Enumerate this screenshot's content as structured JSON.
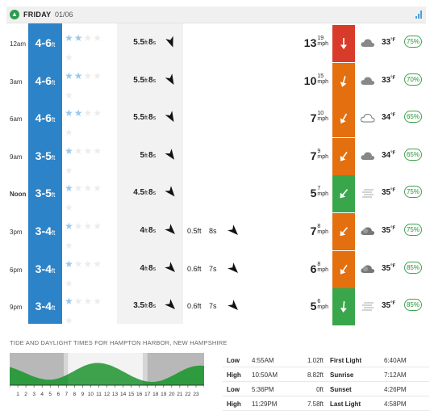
{
  "header": {
    "day": "FRIDAY",
    "date": "01/06"
  },
  "rows": [
    {
      "time": "12am",
      "bold_time": false,
      "surf": "4-6",
      "surf_unit": "ft",
      "stars_on": 2,
      "swell1": {
        "height": "5.5",
        "unit": "ft",
        "period": "8",
        "punit": "s",
        "dir": 160
      },
      "swell2": null,
      "wind": "13",
      "gust": "19",
      "wind_unit": "mph",
      "wind_color": "#d93b2b",
      "wind_dir": 180,
      "weather": "cloudy",
      "temp": "33",
      "temp_unit": "°F",
      "prob": "75%"
    },
    {
      "time": "3am",
      "bold_time": false,
      "surf": "4-6",
      "surf_unit": "ft",
      "stars_on": 2,
      "swell1": {
        "height": "5.5",
        "unit": "ft",
        "period": "8",
        "punit": "s",
        "dir": 150
      },
      "swell2": null,
      "wind": "10",
      "gust": "15",
      "wind_unit": "mph",
      "wind_color": "#e36f0f",
      "wind_dir": 195,
      "weather": "cloudy",
      "temp": "33",
      "temp_unit": "°F",
      "prob": "70%"
    },
    {
      "time": "6am",
      "bold_time": false,
      "surf": "4-6",
      "surf_unit": "ft",
      "stars_on": 2,
      "swell1": {
        "height": "5.5",
        "unit": "ft",
        "period": "8",
        "punit": "s",
        "dir": 150
      },
      "swell2": null,
      "wind": "7",
      "gust": "10",
      "wind_unit": "mph",
      "wind_color": "#e36f0f",
      "wind_dir": 210,
      "weather": "cloudy-outline",
      "temp": "34",
      "temp_unit": "°F",
      "prob": "65%"
    },
    {
      "time": "9am",
      "bold_time": false,
      "surf": "3-5",
      "surf_unit": "ft",
      "stars_on": 1,
      "swell1": {
        "height": "5",
        "unit": "ft",
        "period": "8",
        "punit": "s",
        "dir": 145
      },
      "swell2": null,
      "wind": "7",
      "gust": "9",
      "wind_unit": "mph",
      "wind_color": "#e36f0f",
      "wind_dir": 215,
      "weather": "cloudy",
      "temp": "34",
      "temp_unit": "°F",
      "prob": "65%"
    },
    {
      "time": "Noon",
      "bold_time": true,
      "surf": "3-5",
      "surf_unit": "ft",
      "stars_on": 1,
      "swell1": {
        "height": "4.5",
        "unit": "ft",
        "period": "8",
        "punit": "s",
        "dir": 140
      },
      "swell2": null,
      "wind": "5",
      "gust": "7",
      "wind_unit": "mph",
      "wind_color": "#3aa64b",
      "wind_dir": 220,
      "weather": "fog",
      "temp": "35",
      "temp_unit": "°F",
      "prob": "75%"
    },
    {
      "time": "3pm",
      "bold_time": false,
      "surf": "3-4",
      "surf_unit": "ft",
      "stars_on": 1,
      "swell1": {
        "height": "4",
        "unit": "ft",
        "period": "8",
        "punit": "s",
        "dir": 135
      },
      "swell2": {
        "height": "0.5",
        "unit": "ft",
        "period": "8",
        "punit": "s",
        "dir": 135
      },
      "wind": "7",
      "gust": "8",
      "wind_unit": "mph",
      "wind_color": "#e36f0f",
      "wind_dir": 220,
      "weather": "cloudy-dark",
      "temp": "35",
      "temp_unit": "°F",
      "prob": "75%"
    },
    {
      "time": "6pm",
      "bold_time": false,
      "surf": "3-4",
      "surf_unit": "ft",
      "stars_on": 1,
      "swell1": {
        "height": "4",
        "unit": "ft",
        "period": "8",
        "punit": "s",
        "dir": 135
      },
      "swell2": {
        "height": "0.6",
        "unit": "ft",
        "period": "7",
        "punit": "s",
        "dir": 135
      },
      "wind": "6",
      "gust": "8",
      "wind_unit": "mph",
      "wind_color": "#e36f0f",
      "wind_dir": 215,
      "weather": "cloudy-dark",
      "temp": "35",
      "temp_unit": "°F",
      "prob": "85%"
    },
    {
      "time": "9pm",
      "bold_time": false,
      "surf": "3-4",
      "surf_unit": "ft",
      "stars_on": 1,
      "swell1": {
        "height": "3.5",
        "unit": "ft",
        "period": "8",
        "punit": "s",
        "dir": 135
      },
      "swell2": {
        "height": "0.6",
        "unit": "ft",
        "period": "7",
        "punit": "s",
        "dir": 135
      },
      "wind": "5",
      "gust": "6",
      "wind_unit": "mph",
      "wind_color": "#3aa64b",
      "wind_dir": 185,
      "weather": "fog",
      "temp": "35",
      "temp_unit": "°F",
      "prob": "85%"
    }
  ],
  "tide": {
    "title": "TIDE AND DAYLIGHT TIMES FOR HAMPTON HARBOR, NEW HAMPSHIRE",
    "hours": [
      "1",
      "2",
      "3",
      "4",
      "5",
      "6",
      "7",
      "8",
      "9",
      "10",
      "11",
      "12",
      "13",
      "14",
      "15",
      "16",
      "17",
      "18",
      "19",
      "20",
      "21",
      "22",
      "23"
    ],
    "rows": [
      {
        "type": "Low",
        "time": "4:55AM",
        "height": "1.02ft",
        "label": "First Light",
        "ltime": "6:40AM"
      },
      {
        "type": "High",
        "time": "10:50AM",
        "height": "8.82ft",
        "label": "Sunrise",
        "ltime": "7:12AM"
      },
      {
        "type": "Low",
        "time": "5:36PM",
        "height": "0ft",
        "label": "Sunset",
        "ltime": "4:26PM"
      },
      {
        "type": "High",
        "time": "11:29PM",
        "height": "7.58ft",
        "label": "Last Light",
        "ltime": "4:58PM"
      }
    ]
  }
}
